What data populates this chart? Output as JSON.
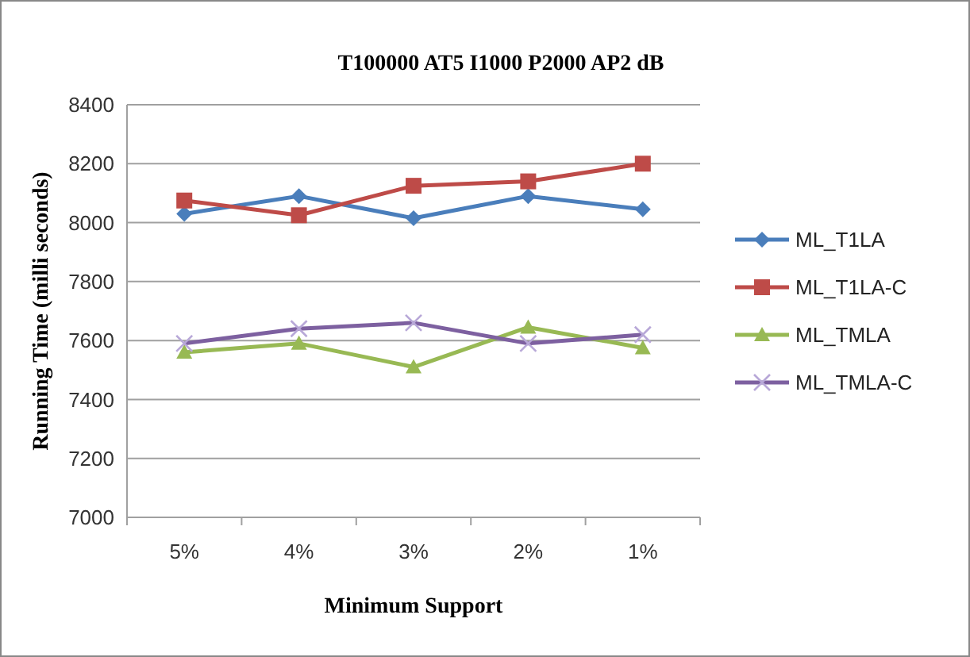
{
  "chart_data": {
    "type": "line",
    "title": "T100000 AT5 I1000 P2000 AP2 dB",
    "xlabel": "Minimum Support",
    "ylabel": "Running Time (milli seconds)",
    "categories": [
      "5%",
      "4%",
      "3%",
      "2%",
      "1%"
    ],
    "ylim": [
      7000,
      8400
    ],
    "yticks": [
      7000,
      7200,
      7400,
      7600,
      7800,
      8000,
      8200,
      8400
    ],
    "grid": "y",
    "legend": "right",
    "series": [
      {
        "name": "ML_T1LA",
        "color": "#4a7ebb",
        "marker": "diamond",
        "values": [
          8030,
          8090,
          8015,
          8090,
          8045
        ]
      },
      {
        "name": "ML_T1LA-C",
        "color": "#be4b48",
        "marker": "square",
        "values": [
          8075,
          8025,
          8125,
          8140,
          8200
        ]
      },
      {
        "name": "ML_TMLA",
        "color": "#98b954",
        "marker": "triangle",
        "values": [
          7560,
          7590,
          7510,
          7645,
          7575
        ]
      },
      {
        "name": "ML_TMLA-C",
        "color": "#7d60a0",
        "marker": "cross",
        "values": [
          7590,
          7640,
          7660,
          7590,
          7620
        ]
      }
    ]
  }
}
